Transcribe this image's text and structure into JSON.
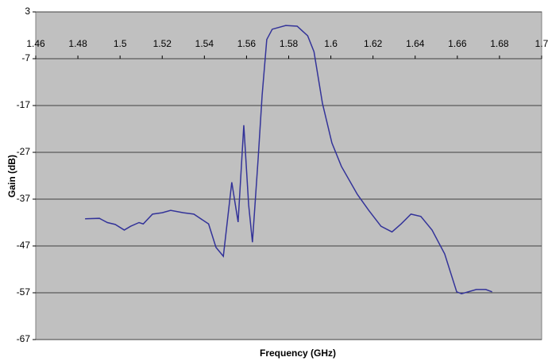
{
  "chart_data": {
    "type": "line",
    "x_label": "Frequency (GHz)",
    "y_label": "Gain (dB)",
    "xlim": [
      1.46,
      1.7
    ],
    "xticks": [
      1.46,
      1.48,
      1.5,
      1.52,
      1.54,
      1.56,
      1.58,
      1.6,
      1.62,
      1.64,
      1.66,
      1.68,
      1.7
    ],
    "ylim": [
      -67,
      3
    ],
    "yticks": [
      3,
      -7,
      -17,
      -27,
      -37,
      -47,
      -57,
      -67
    ],
    "grid": true,
    "series": [
      {
        "color": "#333399",
        "x": [
          1.4834,
          1.4902,
          1.494,
          1.4977,
          1.502,
          1.505,
          1.509,
          1.511,
          1.5154,
          1.52,
          1.524,
          1.53,
          1.535,
          1.542,
          1.5455,
          1.549,
          1.553,
          1.556,
          1.5587,
          1.561,
          1.5628,
          1.5655,
          1.5674,
          1.5696,
          1.5722,
          1.5786,
          1.584,
          1.589,
          1.592,
          1.596,
          1.6005,
          1.605,
          1.6126,
          1.618,
          1.6238,
          1.629,
          1.6333,
          1.638,
          1.6427,
          1.648,
          1.654,
          1.6597,
          1.662,
          1.669,
          1.6735,
          1.6765
        ],
        "values": [
          -41.2,
          -41.1,
          -42,
          -42.4,
          -43.6,
          -42.8,
          -42,
          -42.3,
          -40.2,
          -39.9,
          -39.4,
          -39.9,
          -40.2,
          -42.3,
          -47.3,
          -49.2,
          -33.4,
          -41.9,
          -21.2,
          -38.2,
          -46.2,
          -28.4,
          -14.8,
          -2.9,
          -0.7,
          0.1,
          -0.05,
          -2.1,
          -5.5,
          -16.5,
          -25,
          -30,
          -36,
          -39.4,
          -42.8,
          -44,
          -42.3,
          -40.2,
          -40.7,
          -43.6,
          -48.7,
          -56.8,
          -57.2,
          -56.3,
          -56.3,
          -56.8
        ]
      }
    ]
  }
}
